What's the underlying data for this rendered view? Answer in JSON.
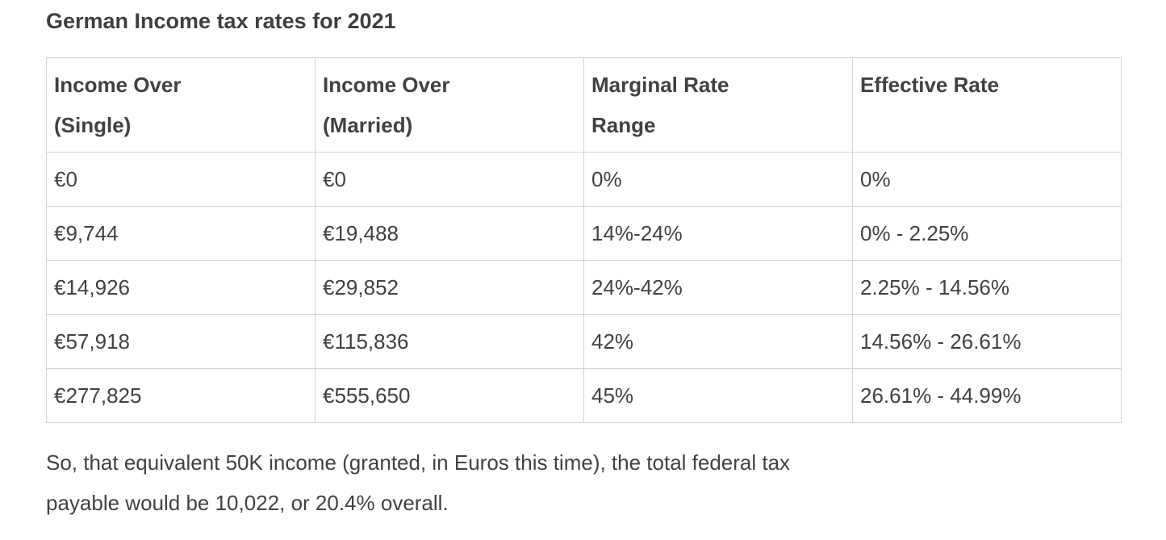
{
  "page": {
    "title": "German Income tax rates for 2021"
  },
  "table": {
    "headers": [
      "Income Over (Single)",
      "Income Over (Married)",
      "Marginal Rate Range",
      "Effective Rate"
    ],
    "rows": [
      [
        "€0",
        "€0",
        "0%",
        "0%"
      ],
      [
        "€9,744",
        "€19,488",
        "14%-24%",
        "0% - 2.25%"
      ],
      [
        "€14,926",
        "€29,852",
        "24%-42%",
        "2.25% - 14.56%"
      ],
      [
        "€57,918",
        "€115,836",
        "42%",
        "14.56% - 26.61%"
      ],
      [
        "€277,825",
        "€555,650",
        "45%",
        "26.61% - 44.99%"
      ]
    ]
  },
  "summary": {
    "lines": [
      "So, that equivalent 50K income (granted, in Euros this time), the total federal tax",
      "payable would be 10,022, or 20.4% overall."
    ]
  },
  "colors": {
    "text": "#3f4245",
    "border": "#d2d2d2",
    "background": "#ffffff"
  }
}
